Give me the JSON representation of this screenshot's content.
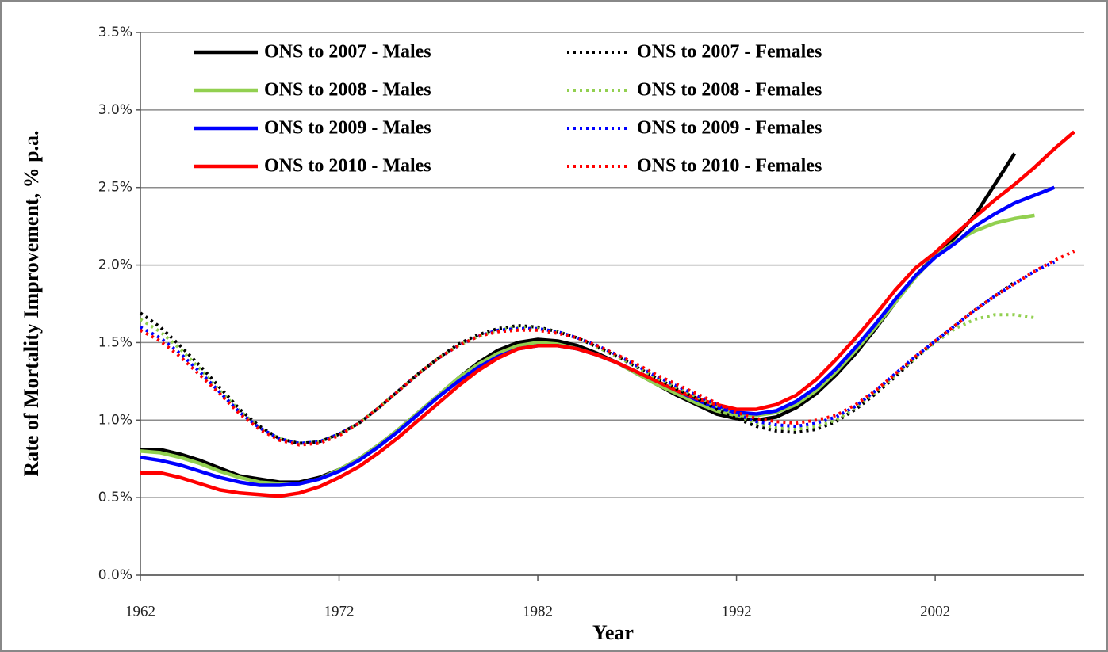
{
  "chart_data": {
    "type": "line",
    "x_label": "Year",
    "y_label": "Rate of Mortality Improvement, % p.a.",
    "x": [
      1962,
      1963,
      1964,
      1965,
      1966,
      1967,
      1968,
      1969,
      1970,
      1971,
      1972,
      1973,
      1974,
      1975,
      1976,
      1977,
      1978,
      1979,
      1980,
      1981,
      1982,
      1983,
      1984,
      1985,
      1986,
      1987,
      1988,
      1989,
      1990,
      1991,
      1992,
      1993,
      1994,
      1995,
      1996,
      1997,
      1998,
      1999,
      2000,
      2001,
      2002,
      2003,
      2004,
      2005,
      2006,
      2007,
      2008,
      2009
    ],
    "xlim": [
      1962,
      2009.5
    ],
    "xticks": [
      1962,
      1972,
      1982,
      1992,
      2002
    ],
    "ylim": [
      0,
      3.5
    ],
    "yticks": [
      {
        "value": 0,
        "label": "0.0%"
      },
      {
        "value": 0.5,
        "label": "0.5%"
      },
      {
        "value": 1,
        "label": "1.0%"
      },
      {
        "value": 1.5,
        "label": "1.5%"
      },
      {
        "value": 2,
        "label": "2.0%"
      },
      {
        "value": 2.5,
        "label": "2.5%"
      },
      {
        "value": 3,
        "label": "3.0%"
      },
      {
        "value": 3.5,
        "label": "3.5%"
      }
    ],
    "grid": true,
    "legend": "upper left",
    "series": [
      {
        "name": "ONS to 2007 - Males",
        "color": "#000000",
        "style": "solid",
        "values": [
          0.81,
          0.81,
          0.78,
          0.74,
          0.69,
          0.64,
          0.62,
          0.6,
          0.6,
          0.63,
          0.68,
          0.75,
          0.84,
          0.94,
          1.05,
          1.16,
          1.27,
          1.37,
          1.45,
          1.5,
          1.52,
          1.51,
          1.48,
          1.43,
          1.37,
          1.3,
          1.23,
          1.16,
          1.1,
          1.04,
          1.01,
          1.0,
          1.02,
          1.08,
          1.17,
          1.29,
          1.43,
          1.59,
          1.76,
          1.93,
          2.06,
          2.18,
          2.32,
          2.52,
          2.72,
          null,
          null,
          null
        ]
      },
      {
        "name": "ONS to 2008 - Males",
        "color": "#92d050",
        "style": "solid",
        "values": [
          0.8,
          0.79,
          0.76,
          0.72,
          0.67,
          0.63,
          0.6,
          0.59,
          0.59,
          0.62,
          0.68,
          0.75,
          0.84,
          0.94,
          1.05,
          1.16,
          1.27,
          1.36,
          1.43,
          1.48,
          1.5,
          1.49,
          1.46,
          1.42,
          1.37,
          1.3,
          1.23,
          1.17,
          1.11,
          1.06,
          1.03,
          1.03,
          1.05,
          1.1,
          1.19,
          1.31,
          1.45,
          1.6,
          1.76,
          1.92,
          2.06,
          2.15,
          2.22,
          2.27,
          2.3,
          2.32,
          null,
          null
        ]
      },
      {
        "name": "ONS to 2009 - Males",
        "color": "#0000ff",
        "style": "solid",
        "values": [
          0.76,
          0.74,
          0.71,
          0.67,
          0.63,
          0.6,
          0.58,
          0.58,
          0.59,
          0.62,
          0.67,
          0.74,
          0.83,
          0.93,
          1.04,
          1.15,
          1.25,
          1.34,
          1.41,
          1.46,
          1.48,
          1.48,
          1.46,
          1.42,
          1.37,
          1.31,
          1.25,
          1.19,
          1.13,
          1.08,
          1.05,
          1.04,
          1.06,
          1.12,
          1.21,
          1.33,
          1.47,
          1.62,
          1.78,
          1.93,
          2.05,
          2.14,
          2.25,
          2.33,
          2.4,
          2.45,
          2.5,
          null
        ]
      },
      {
        "name": "ONS to 2010 - Males",
        "color": "#ff0000",
        "style": "solid",
        "values": [
          0.66,
          0.66,
          0.63,
          0.59,
          0.55,
          0.53,
          0.52,
          0.51,
          0.53,
          0.57,
          0.63,
          0.7,
          0.79,
          0.89,
          1.0,
          1.11,
          1.22,
          1.32,
          1.4,
          1.46,
          1.48,
          1.48,
          1.46,
          1.42,
          1.37,
          1.31,
          1.25,
          1.19,
          1.14,
          1.1,
          1.07,
          1.07,
          1.1,
          1.16,
          1.26,
          1.39,
          1.53,
          1.68,
          1.84,
          1.98,
          2.08,
          2.2,
          2.31,
          2.42,
          2.52,
          2.63,
          2.75,
          2.86
        ]
      },
      {
        "name": "ONS to 2007 - Females",
        "color": "#000000",
        "style": "dotted",
        "values": [
          1.69,
          1.6,
          1.48,
          1.35,
          1.21,
          1.07,
          0.96,
          0.88,
          0.85,
          0.86,
          0.91,
          0.98,
          1.08,
          1.19,
          1.3,
          1.4,
          1.49,
          1.55,
          1.59,
          1.61,
          1.6,
          1.57,
          1.53,
          1.47,
          1.41,
          1.34,
          1.27,
          1.2,
          1.14,
          1.07,
          1.01,
          0.96,
          0.93,
          0.92,
          0.94,
          0.99,
          1.07,
          1.17,
          1.28,
          1.4,
          1.51,
          1.61,
          1.71,
          1.8,
          1.89,
          null,
          null,
          null
        ]
      },
      {
        "name": "ONS to 2008 - Females",
        "color": "#92d050",
        "style": "dotted",
        "values": [
          1.65,
          1.57,
          1.46,
          1.33,
          1.19,
          1.06,
          0.95,
          0.88,
          0.85,
          0.86,
          0.91,
          0.98,
          1.08,
          1.19,
          1.3,
          1.4,
          1.48,
          1.54,
          1.58,
          1.6,
          1.59,
          1.57,
          1.53,
          1.47,
          1.41,
          1.34,
          1.27,
          1.21,
          1.15,
          1.09,
          1.03,
          0.98,
          0.95,
          0.94,
          0.96,
          1.0,
          1.08,
          1.18,
          1.29,
          1.4,
          1.5,
          1.59,
          1.65,
          1.68,
          1.68,
          1.66,
          null,
          null
        ]
      },
      {
        "name": "ONS to 2009 - Females",
        "color": "#0000ff",
        "style": "dotted",
        "values": [
          1.6,
          1.53,
          1.43,
          1.31,
          1.18,
          1.05,
          0.95,
          0.88,
          0.85,
          0.86,
          0.91,
          0.98,
          1.08,
          1.19,
          1.3,
          1.4,
          1.48,
          1.54,
          1.58,
          1.59,
          1.59,
          1.57,
          1.53,
          1.48,
          1.42,
          1.35,
          1.28,
          1.22,
          1.16,
          1.1,
          1.04,
          0.99,
          0.97,
          0.96,
          0.98,
          1.02,
          1.09,
          1.19,
          1.3,
          1.41,
          1.51,
          1.61,
          1.71,
          1.8,
          1.88,
          1.96,
          2.02,
          null
        ]
      },
      {
        "name": "ONS to 2010 - Females",
        "color": "#ff0000",
        "style": "dotted",
        "values": [
          1.58,
          1.51,
          1.41,
          1.29,
          1.17,
          1.04,
          0.94,
          0.87,
          0.84,
          0.85,
          0.9,
          0.98,
          1.08,
          1.19,
          1.3,
          1.4,
          1.48,
          1.54,
          1.57,
          1.58,
          1.58,
          1.56,
          1.53,
          1.48,
          1.42,
          1.36,
          1.29,
          1.23,
          1.17,
          1.11,
          1.05,
          1.01,
          0.99,
          0.98,
          1.0,
          1.03,
          1.1,
          1.19,
          1.3,
          1.41,
          1.51,
          1.61,
          1.71,
          1.8,
          1.88,
          1.96,
          2.03,
          2.09
        ]
      }
    ]
  }
}
